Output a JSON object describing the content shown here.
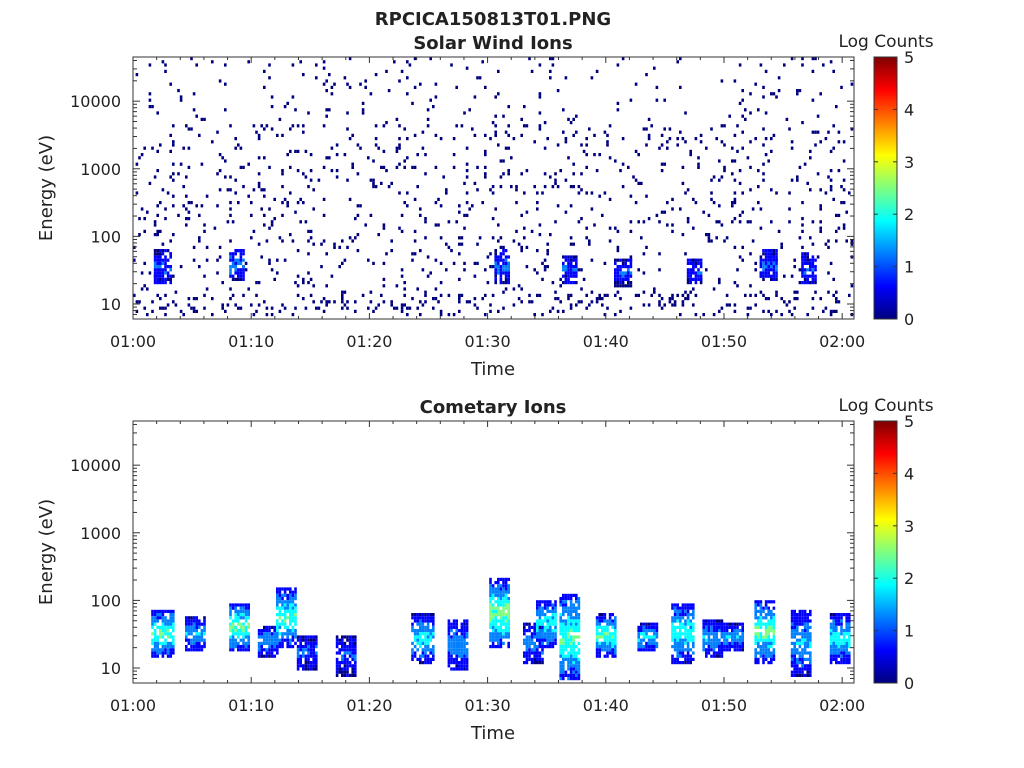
{
  "figure_title": "RPCICA150813T01.PNG",
  "colormap": [
    "#00007f",
    "#0000ff",
    "#007fff",
    "#00ffff",
    "#7fff7f",
    "#ffff00",
    "#ff7f00",
    "#ff0000",
    "#7f0000"
  ],
  "chart_data": [
    {
      "type": "heatmap",
      "title": "Solar Wind Ions",
      "xlabel": "Time",
      "ylabel": "Energy (eV)",
      "x_ticks": [
        "01:00",
        "01:10",
        "01:20",
        "01:30",
        "01:40",
        "01:50",
        "02:00"
      ],
      "x_range_minutes": [
        0,
        61
      ],
      "y_scale": "log",
      "y_range": [
        6,
        45000
      ],
      "y_ticks": [
        10,
        100,
        1000,
        10000
      ],
      "y_tick_labels": [
        "10",
        "100",
        "1000",
        "10000"
      ],
      "colorbar": {
        "label": "Log Counts",
        "range": [
          0,
          5
        ],
        "ticks": [
          "0",
          "1",
          "2",
          "3",
          "4",
          "5"
        ]
      },
      "bursts": [
        {
          "t": 2.5,
          "e_lo": 20,
          "e_hi": 60,
          "level": 1.0
        },
        {
          "t": 8.8,
          "e_lo": 22,
          "e_hi": 65,
          "level": 1.2
        },
        {
          "t": 31.2,
          "e_lo": 20,
          "e_hi": 60,
          "level": 1.1
        },
        {
          "t": 37.0,
          "e_lo": 20,
          "e_hi": 50,
          "level": 1.0
        },
        {
          "t": 41.5,
          "e_lo": 18,
          "e_hi": 45,
          "level": 0.9
        },
        {
          "t": 47.5,
          "e_lo": 20,
          "e_hi": 45,
          "level": 0.9
        },
        {
          "t": 53.8,
          "e_lo": 22,
          "e_hi": 60,
          "level": 1.0
        },
        {
          "t": 57.2,
          "e_lo": 20,
          "e_hi": 55,
          "level": 1.0
        }
      ]
    },
    {
      "type": "heatmap",
      "title": "Cometary Ions",
      "xlabel": "Time",
      "ylabel": "Energy (eV)",
      "x_ticks": [
        "01:00",
        "01:10",
        "01:20",
        "01:30",
        "01:40",
        "01:50",
        "02:00"
      ],
      "x_range_minutes": [
        0,
        61
      ],
      "y_scale": "log",
      "y_range": [
        6,
        45000
      ],
      "y_ticks": [
        10,
        100,
        1000,
        10000
      ],
      "y_tick_labels": [
        "10",
        "100",
        "1000",
        "10000"
      ],
      "colorbar": {
        "label": "Log Counts",
        "range": [
          0,
          5
        ],
        "ticks": [
          "0",
          "1",
          "2",
          "3",
          "4",
          "5"
        ]
      },
      "bursts": [
        {
          "t": 2.5,
          "e_lo": 15,
          "e_hi": 70,
          "level": 2.3
        },
        {
          "t": 5.2,
          "e_lo": 18,
          "e_hi": 55,
          "level": 1.5
        },
        {
          "t": 9.0,
          "e_lo": 18,
          "e_hi": 90,
          "level": 2.4
        },
        {
          "t": 11.5,
          "e_lo": 15,
          "e_hi": 40,
          "level": 1.4
        },
        {
          "t": 13.0,
          "e_lo": 20,
          "e_hi": 150,
          "level": 2.2
        },
        {
          "t": 14.8,
          "e_lo": 10,
          "e_hi": 30,
          "level": 1.0
        },
        {
          "t": 18.0,
          "e_lo": 8,
          "e_hi": 30,
          "level": 0.9
        },
        {
          "t": 24.5,
          "e_lo": 12,
          "e_hi": 60,
          "level": 1.8
        },
        {
          "t": 27.5,
          "e_lo": 10,
          "e_hi": 50,
          "level": 1.4
        },
        {
          "t": 31.0,
          "e_lo": 20,
          "e_hi": 200,
          "level": 2.5
        },
        {
          "t": 33.8,
          "e_lo": 12,
          "e_hi": 45,
          "level": 1.3
        },
        {
          "t": 35.0,
          "e_lo": 20,
          "e_hi": 100,
          "level": 2.0
        },
        {
          "t": 37.0,
          "e_lo": 6,
          "e_hi": 120,
          "level": 2.3
        },
        {
          "t": 40.0,
          "e_lo": 15,
          "e_hi": 60,
          "level": 2.3
        },
        {
          "t": 43.5,
          "e_lo": 18,
          "e_hi": 45,
          "level": 1.7
        },
        {
          "t": 46.5,
          "e_lo": 12,
          "e_hi": 90,
          "level": 2.0
        },
        {
          "t": 49.0,
          "e_lo": 15,
          "e_hi": 50,
          "level": 1.5
        },
        {
          "t": 50.7,
          "e_lo": 18,
          "e_hi": 45,
          "level": 1.5
        },
        {
          "t": 53.5,
          "e_lo": 12,
          "e_hi": 100,
          "level": 2.4
        },
        {
          "t": 56.5,
          "e_lo": 8,
          "e_hi": 70,
          "level": 1.6
        },
        {
          "t": 59.8,
          "e_lo": 12,
          "e_hi": 60,
          "level": 1.9
        }
      ]
    }
  ]
}
